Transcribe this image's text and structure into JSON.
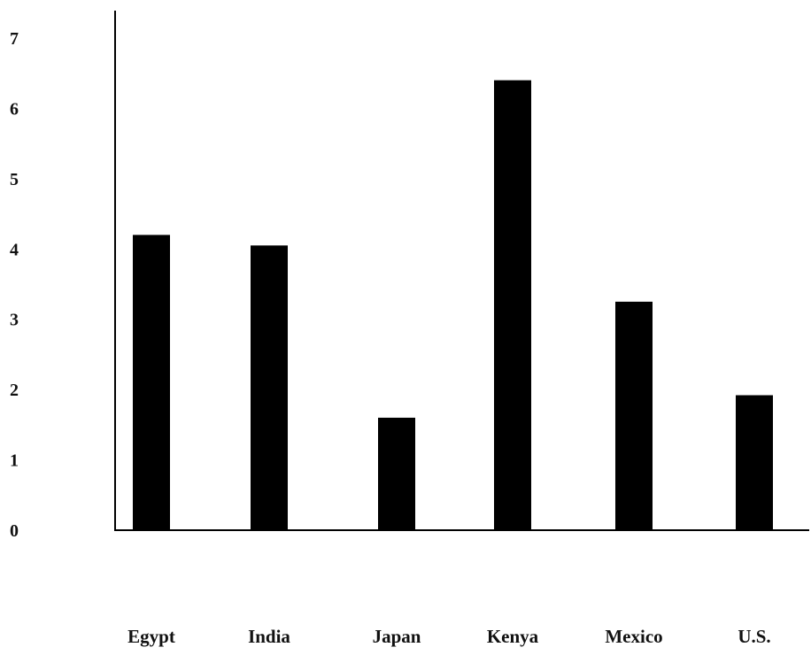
{
  "chart_data": {
    "type": "bar",
    "categories": [
      "Egypt",
      "India",
      "Japan",
      "Kenya",
      "Mexico",
      "U.S."
    ],
    "values": [
      4.2,
      4.05,
      1.6,
      6.4,
      3.25,
      1.92
    ],
    "yticks": [
      "0",
      "1",
      "2",
      "3",
      "4",
      "5",
      "6",
      "7"
    ],
    "ylim": [
      0,
      7
    ],
    "title": "",
    "xlabel": "",
    "ylabel": "",
    "grid": false,
    "bar_color": "#000000",
    "axis_color": "#000000"
  }
}
